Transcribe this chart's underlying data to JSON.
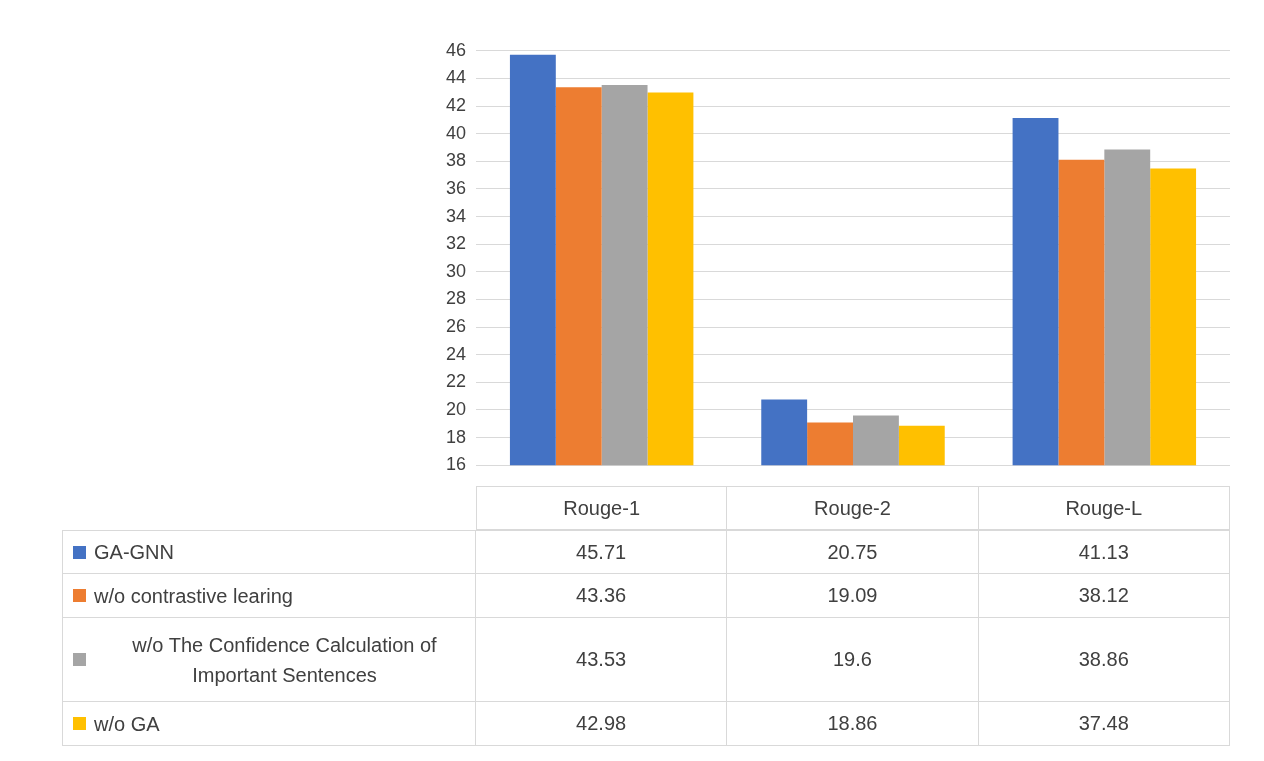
{
  "chart_data": {
    "type": "bar",
    "categories": [
      "Rouge-1",
      "Rouge-2",
      "Rouge-L"
    ],
    "series": [
      {
        "name": "GA-GNN",
        "color": "#4472c4",
        "values": [
          45.71,
          20.75,
          41.13
        ]
      },
      {
        "name": "w/o contrastive learing",
        "color": "#ed7d31",
        "values": [
          43.36,
          19.09,
          38.12
        ]
      },
      {
        "name": "w/o The Confidence Calculation of Important Sentences",
        "color": "#a5a5a5",
        "values": [
          43.53,
          19.6,
          38.86
        ]
      },
      {
        "name": "w/o GA",
        "color": "#ffc000",
        "values": [
          42.98,
          18.86,
          37.48
        ]
      }
    ],
    "ylim": [
      16,
      46
    ],
    "yticks": [
      16,
      18,
      20,
      22,
      24,
      26,
      28,
      30,
      32,
      34,
      36,
      38,
      40,
      42,
      44,
      46
    ],
    "grid": "y",
    "legend": "bottom",
    "data_labels": true
  }
}
